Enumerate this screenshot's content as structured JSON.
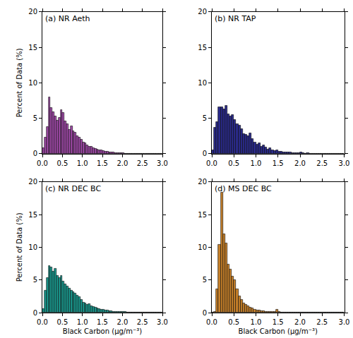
{
  "chart_data": [
    {
      "type": "histogram",
      "title": "(a) NR Aeth",
      "y_label": "Percent of Data (%)",
      "color": "#a04aa8",
      "bins": [
        0.0,
        0.05,
        0.1,
        0.15,
        0.2,
        0.25,
        0.3,
        0.35,
        0.4,
        0.45,
        0.5,
        0.55,
        0.6,
        0.65,
        0.7,
        0.75,
        0.8,
        0.85,
        0.9,
        0.95,
        1.0,
        1.05,
        1.1,
        1.15,
        1.2,
        1.25,
        1.3,
        1.35,
        1.4,
        1.45,
        1.5,
        1.55,
        1.6,
        1.65,
        1.7,
        1.75,
        1.8,
        1.85,
        1.9,
        1.95,
        2.0,
        2.05,
        2.1,
        2.15,
        2.2,
        2.25,
        2.3,
        2.35,
        2.4,
        2.45,
        2.5,
        2.55,
        2.6,
        2.65,
        2.7,
        2.75,
        2.8,
        2.85,
        2.9,
        2.95,
        3.0
      ],
      "values": [
        0.8,
        2.3,
        3.8,
        8.0,
        6.5,
        5.9,
        5.3,
        4.7,
        5.1,
        6.2,
        5.8,
        4.6,
        4.2,
        3.4,
        3.9,
        3.2,
        3.0,
        2.5,
        2.3,
        2.0,
        1.6,
        1.5,
        1.2,
        1.0,
        1.0,
        0.8,
        0.7,
        0.6,
        0.5,
        0.5,
        0.4,
        0.3,
        0.3,
        0.25,
        0.2,
        0.2,
        0.15,
        0.15,
        0.1,
        0.1,
        0.1,
        0.05,
        0.05,
        0.05,
        0.05,
        0.03,
        0.03,
        0.02,
        0.02,
        0.02,
        0.01,
        0.01,
        0.01,
        0.01,
        0.01,
        0.01,
        0.05,
        0.01,
        0.01,
        0.01
      ],
      "xlim": [
        0,
        3
      ],
      "ylim": [
        0,
        20
      ],
      "xticks": [
        {
          "value": 0,
          "label": "0.0"
        },
        0.5,
        {
          "value": 1,
          "label": "1.0"
        },
        1.5,
        {
          "value": 2,
          "label": "2.0"
        },
        2.5,
        {
          "value": 3,
          "label": "3.0"
        }
      ],
      "yticks": [
        0,
        5,
        10,
        15,
        20
      ]
    },
    {
      "type": "histogram",
      "title": "(b) NR TAP",
      "color": "#2b2b8c",
      "bins": [
        0.0,
        0.05,
        0.1,
        0.15,
        0.2,
        0.25,
        0.3,
        0.35,
        0.4,
        0.45,
        0.5,
        0.55,
        0.6,
        0.65,
        0.7,
        0.75,
        0.8,
        0.85,
        0.9,
        0.95,
        1.0,
        1.05,
        1.1,
        1.15,
        1.2,
        1.25,
        1.3,
        1.35,
        1.4,
        1.45,
        1.5,
        1.55,
        1.6,
        1.65,
        1.7,
        1.75,
        1.8,
        1.85,
        1.9,
        1.95,
        2.0,
        2.05,
        2.1,
        2.15,
        2.2,
        2.25,
        2.3,
        2.35,
        2.4,
        2.45,
        2.5,
        2.55,
        2.6,
        2.65,
        2.7,
        2.75,
        2.8,
        2.85,
        2.9,
        2.95,
        3.0
      ],
      "values": [
        0.5,
        3.7,
        4.5,
        6.6,
        6.6,
        6.3,
        6.8,
        5.6,
        5.3,
        5.5,
        4.8,
        4.2,
        4.0,
        3.5,
        2.8,
        2.7,
        2.5,
        2.9,
        2.1,
        1.6,
        1.3,
        1.5,
        1.0,
        1.2,
        0.9,
        0.6,
        0.8,
        0.5,
        0.4,
        0.5,
        0.3,
        0.3,
        0.2,
        0.25,
        0.2,
        0.2,
        0.15,
        0.1,
        0.15,
        0.1,
        0.2,
        0.1,
        0.05,
        0.1,
        0.05,
        0.05,
        0.05,
        0.05,
        0.05,
        0.03,
        0.03,
        0.03,
        0.02,
        0.02,
        0.02,
        0.02,
        0.05,
        0.02,
        0,
        0
      ],
      "xlim": [
        0,
        3
      ],
      "ylim": [
        0,
        20
      ],
      "xticks": [
        {
          "value": 0,
          "label": "0.0"
        },
        0.5,
        {
          "value": 1,
          "label": "1.0"
        },
        1.5,
        {
          "value": 2,
          "label": "2.0"
        },
        2.5,
        {
          "value": 3,
          "label": "3.0"
        }
      ],
      "yticks": [
        0,
        5,
        10,
        15,
        20
      ]
    },
    {
      "type": "histogram",
      "title": "(c) NR DEC BC",
      "x_label": "Black Carbon (μg/m⁻³)",
      "y_label": "Percent of Data (%)",
      "color": "#1a9a8f",
      "bins": [
        0.0,
        0.05,
        0.1,
        0.15,
        0.2,
        0.25,
        0.3,
        0.35,
        0.4,
        0.45,
        0.5,
        0.55,
        0.6,
        0.65,
        0.7,
        0.75,
        0.8,
        0.85,
        0.9,
        0.95,
        1.0,
        1.05,
        1.1,
        1.15,
        1.2,
        1.25,
        1.3,
        1.35,
        1.4,
        1.45,
        1.5,
        1.55,
        1.6,
        1.65,
        1.7,
        1.75,
        1.8,
        1.85,
        1.9,
        1.95,
        2.0,
        2.05,
        2.1,
        2.15,
        2.2,
        2.25,
        2.3,
        2.35,
        2.4,
        2.45,
        2.5,
        2.55,
        2.6,
        2.65,
        2.7,
        2.75,
        2.8,
        2.85,
        2.9,
        2.95,
        3.0
      ],
      "values": [
        0.6,
        3.4,
        5.3,
        7.2,
        6.9,
        6.3,
        6.7,
        5.6,
        5.3,
        5.6,
        4.8,
        4.4,
        4.0,
        3.7,
        3.4,
        3.2,
        3.0,
        2.6,
        2.4,
        2.0,
        1.6,
        1.4,
        1.2,
        1.3,
        1.0,
        0.9,
        0.8,
        0.7,
        0.6,
        0.5,
        0.5,
        0.4,
        0.35,
        0.3,
        0.25,
        0.2,
        0.2,
        0.15,
        0.15,
        0.1,
        0.1,
        0.1,
        0.05,
        0.05,
        0.05,
        0.05,
        0.04,
        0.03,
        0.03,
        0.03,
        0.02,
        0.02,
        0.02,
        0.02,
        0.02,
        0.01,
        0.01,
        0.01,
        0.01,
        0.01
      ],
      "xlim": [
        0,
        3
      ],
      "ylim": [
        0,
        20
      ],
      "xticks": [
        {
          "value": 0,
          "label": "0.0"
        },
        0.5,
        {
          "value": 1,
          "label": "1.0"
        },
        1.5,
        {
          "value": 2,
          "label": "2.0"
        },
        2.5,
        {
          "value": 3,
          "label": "3.0"
        }
      ],
      "yticks": [
        0,
        5,
        10,
        15,
        20
      ]
    },
    {
      "type": "histogram",
      "title": "(d) MS DEC BC",
      "x_label": "Black Carbon (μg/m⁻³)",
      "color": "#c8812a",
      "bins": [
        0.0,
        0.05,
        0.1,
        0.15,
        0.2,
        0.25,
        0.3,
        0.35,
        0.4,
        0.45,
        0.5,
        0.55,
        0.6,
        0.65,
        0.7,
        0.75,
        0.8,
        0.85,
        0.9,
        0.95,
        1.0,
        1.05,
        1.1,
        1.15,
        1.2,
        1.25,
        1.3,
        1.35,
        1.4,
        1.45,
        1.5,
        1.55,
        1.6,
        1.65,
        1.7,
        1.75,
        1.8,
        1.85,
        1.9,
        1.95,
        2.0,
        2.05,
        2.1,
        2.15,
        2.2,
        2.25,
        2.3,
        2.35,
        2.4,
        2.45,
        2.5,
        2.55,
        2.6,
        2.65,
        2.7,
        2.75,
        2.8,
        2.85,
        2.9,
        2.95,
        3.0
      ],
      "values": [
        0,
        0.1,
        3.6,
        10.4,
        18.4,
        12.0,
        10.6,
        7.4,
        6.6,
        5.5,
        5.0,
        3.6,
        2.5,
        2.0,
        1.4,
        1.2,
        1.0,
        0.8,
        0.7,
        0.5,
        0.4,
        0.35,
        0.3,
        0.25,
        0.2,
        0.15,
        0.15,
        0.1,
        0.1,
        0.5,
        0.1,
        0.05,
        0.05,
        0.05,
        0.03,
        0.03,
        0.03,
        0.02,
        0.02,
        0.02,
        0.01,
        0.01,
        0.01,
        0,
        0,
        0,
        0,
        0,
        0,
        0,
        0,
        0,
        0,
        0,
        0,
        0,
        0,
        0,
        0,
        0
      ],
      "xlim": [
        0,
        3
      ],
      "ylim": [
        0,
        20
      ],
      "xticks": [
        {
          "value": 0,
          "label": "0.0"
        },
        0.5,
        {
          "value": 1,
          "label": "1.0"
        },
        1.5,
        {
          "value": 2,
          "label": "2.0"
        },
        2.5,
        {
          "value": 3,
          "label": "3.0"
        }
      ],
      "yticks": [
        0,
        5,
        10,
        15,
        20
      ]
    }
  ]
}
